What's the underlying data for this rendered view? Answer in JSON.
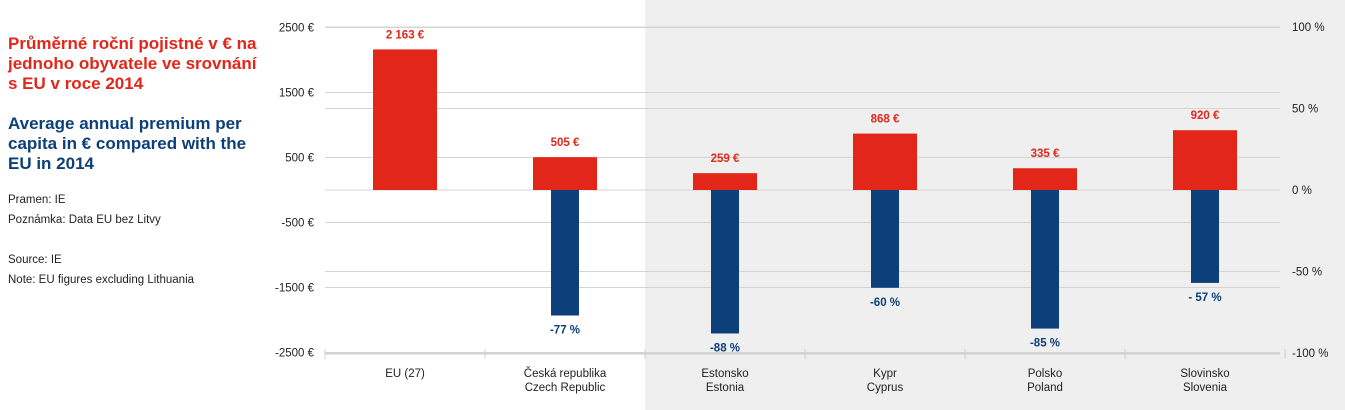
{
  "text": {
    "title_cz": "Průměrné roční pojistné v € na jednoho obyvatele ve srovnání s EU v roce 2014",
    "title_en": "Average annual premium per capita in € compared with the EU in 2014",
    "source_cz": "Pramen: IE",
    "note_cz": "Poznámka: Data EU bez Litvy",
    "source_en": "Source: IE",
    "note_en": "Note: EU figures excluding Lithuania"
  },
  "colors": {
    "premium": "#e2261a",
    "percent": "#0d3f7a",
    "shade": "#efefef",
    "grid": "#d4d4d4"
  },
  "chart_data": {
    "type": "bar",
    "categories": [
      [
        "EU (27)"
      ],
      [
        "Česká republika",
        "Czech Republic"
      ],
      [
        "Estonsko",
        "Estonia"
      ],
      [
        "Kypr",
        "Cyprus"
      ],
      [
        "Polsko",
        "Poland"
      ],
      [
        "Slovinsko",
        "Slovenia"
      ]
    ],
    "series": [
      {
        "axis": "left",
        "values": [
          2163,
          505,
          259,
          868,
          335,
          920
        ],
        "labels": [
          "2 163 €",
          "505 €",
          "259 €",
          "868 €",
          "335 €",
          "920 €"
        ]
      },
      {
        "axis": "right",
        "values": [
          null,
          -77,
          -88,
          -60,
          -85,
          -57
        ],
        "labels": [
          "",
          "-77 %",
          "-88 %",
          "-60 %",
          "-85 %",
          "- 57 %"
        ]
      }
    ],
    "left_axis": {
      "ticks": [
        2500,
        1500,
        500,
        -500,
        -1500,
        -2500
      ],
      "tick_labels": [
        "2500 €",
        "1500 €",
        "500 €",
        "-500 €",
        "-1500 €",
        "-2500 €"
      ]
    },
    "right_axis": {
      "ticks": [
        100,
        50,
        0,
        -50,
        -100
      ],
      "tick_labels": [
        "100 %",
        "50 %",
        "0 %",
        "-50 %",
        "-100 %"
      ]
    },
    "shaded_from_category": 2,
    "grid": true
  }
}
